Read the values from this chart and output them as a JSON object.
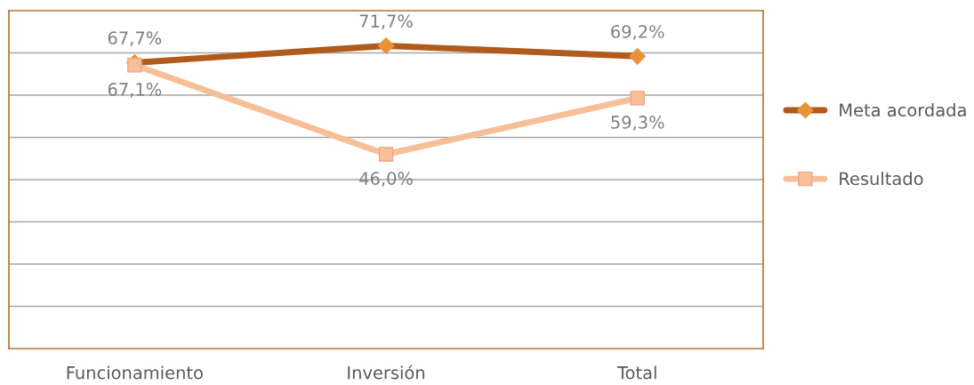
{
  "chart_data": {
    "type": "line",
    "categories": [
      "Funcionamiento",
      "Inversión",
      "Total"
    ],
    "series": [
      {
        "name": "Meta acordada",
        "color": "#b05a1c",
        "marker": "diamond",
        "values": [
          67.7,
          71.7,
          69.2
        ],
        "value_labels": [
          "67,7%",
          "71,7%",
          "69,2%"
        ]
      },
      {
        "name": "Resultado",
        "color": "#f7bf98",
        "marker": "square",
        "values": [
          67.1,
          46.0,
          59.3
        ],
        "value_labels": [
          "67,1%",
          "46,0%",
          "59,3%"
        ]
      }
    ],
    "ylim": [
      0,
      80
    ],
    "yticks": [
      {
        "value": 10,
        "label": null
      },
      {
        "value": 20,
        "label": null
      },
      {
        "value": 30,
        "label": null
      },
      {
        "value": 40,
        "label": null
      },
      {
        "value": 50,
        "label": null
      },
      {
        "value": 60,
        "label": null
      },
      {
        "value": 70,
        "label": null
      }
    ],
    "tick_labels": "x",
    "grid": "y",
    "legend": "right"
  }
}
